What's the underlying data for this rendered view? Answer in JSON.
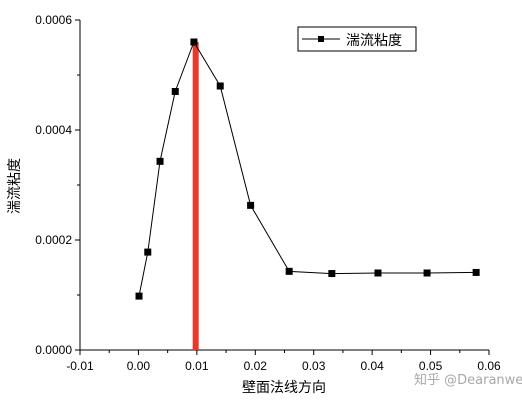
{
  "chart_data": {
    "type": "line",
    "xlabel": "壁面法线方向",
    "ylabel": "湍流粘度",
    "xlim": [
      -0.01,
      0.06
    ],
    "ylim": [
      0.0,
      0.0006
    ],
    "x_ticks": [
      "-0.01",
      "0.00",
      "0.01",
      "0.02",
      "0.03",
      "0.04",
      "0.05",
      "0.06"
    ],
    "y_ticks": [
      "0.0000",
      "0.0002",
      "0.0004",
      "0.0006"
    ],
    "grid": false,
    "legend_position": "top-right",
    "series": [
      {
        "name": "湍流粘度",
        "color": "#000000",
        "marker": "square",
        "points": [
          [
            0.0001,
            9.8e-05
          ],
          [
            0.0016,
            0.000178
          ],
          [
            0.0037,
            0.000343
          ],
          [
            0.0063,
            0.00047
          ],
          [
            0.0095,
            0.00056
          ],
          [
            0.014,
            0.00048
          ],
          [
            0.0192,
            0.000263
          ],
          [
            0.0258,
            0.000143
          ],
          [
            0.0331,
            0.000139
          ],
          [
            0.041,
            0.00014
          ],
          [
            0.0494,
            0.00014
          ],
          [
            0.0578,
            0.000141
          ]
        ]
      }
    ],
    "annotations": [
      {
        "type": "vertical-bar",
        "x": 0.0098,
        "y_from": 0.0,
        "y_to": 0.00056,
        "color": "#e8392b"
      }
    ]
  },
  "watermark": "知乎 @Dearanwen"
}
